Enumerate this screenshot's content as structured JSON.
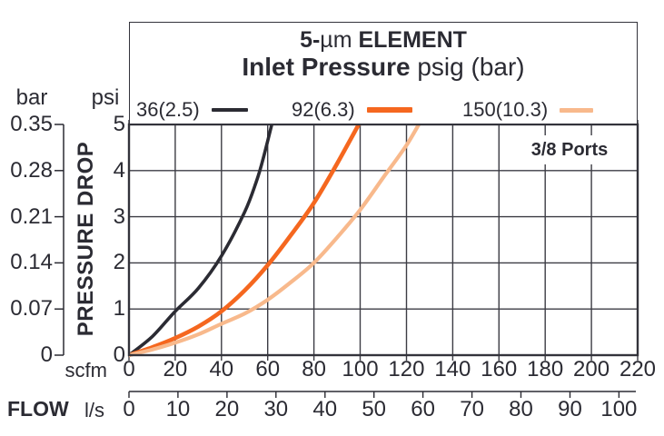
{
  "header": {
    "title_bold_pre": "5-",
    "title_mu": "µm",
    "title_bold_post": " ELEMENT",
    "subtitle_bold": "Inlet Pressure",
    "subtitle_rest": " psig (bar)"
  },
  "chart_data": {
    "type": "line",
    "title": "5-µm ELEMENT",
    "subtitle": "Inlet Pressure psig (bar)",
    "annotation": "3/8 Ports",
    "grid": true,
    "legend_position": "top",
    "x_axis": {
      "label": "FLOW",
      "scfm": {
        "name": "scfm",
        "ticks": [
          0,
          20,
          40,
          60,
          80,
          100,
          120,
          140,
          160,
          180,
          200,
          220
        ],
        "range": [
          0,
          220
        ]
      },
      "ls": {
        "name": "l/s",
        "ticks": [
          0,
          10,
          20,
          30,
          40,
          50,
          60,
          70,
          80,
          90,
          100
        ],
        "range": [
          0,
          100
        ]
      }
    },
    "y_axis": {
      "label": "PRESSURE DROP",
      "psi": {
        "name": "psi",
        "ticks": [
          "5",
          "4",
          "3",
          "2",
          "1",
          "0"
        ],
        "range": [
          0,
          5
        ]
      },
      "bar": {
        "name": "bar",
        "ticks": [
          "0.35",
          "0.28",
          "0.21",
          "0.14",
          "0.07",
          "0"
        ],
        "range": [
          0,
          0.35
        ]
      }
    },
    "series": [
      {
        "name": "36(2.5)",
        "inlet_psig": 36,
        "inlet_bar": 2.5,
        "color": "#2b2b33",
        "points_scfm_psi": [
          [
            0,
            0
          ],
          [
            10,
            0.4
          ],
          [
            20,
            0.95
          ],
          [
            30,
            1.45
          ],
          [
            40,
            2.15
          ],
          [
            50,
            3.1
          ],
          [
            55,
            3.75
          ],
          [
            58,
            4.25
          ],
          [
            62.5,
            5.15
          ]
        ]
      },
      {
        "name": "92(6.3)",
        "inlet_psig": 92,
        "inlet_bar": 6.3,
        "color": "#f5671f",
        "points_scfm_psi": [
          [
            0,
            0
          ],
          [
            10,
            0.17
          ],
          [
            20,
            0.37
          ],
          [
            30,
            0.62
          ],
          [
            40,
            0.95
          ],
          [
            50,
            1.4
          ],
          [
            60,
            1.95
          ],
          [
            70,
            2.6
          ],
          [
            80,
            3.3
          ],
          [
            90,
            4.15
          ],
          [
            101,
            5.15
          ]
        ]
      },
      {
        "name": "150(10.3)",
        "inlet_psig": 150,
        "inlet_bar": 10.3,
        "color": "#f8b98c",
        "points_scfm_psi": [
          [
            0,
            0
          ],
          [
            10,
            0.12
          ],
          [
            20,
            0.27
          ],
          [
            30,
            0.45
          ],
          [
            40,
            0.68
          ],
          [
            50,
            0.9
          ],
          [
            60,
            1.2
          ],
          [
            70,
            1.58
          ],
          [
            80,
            2.0
          ],
          [
            90,
            2.55
          ],
          [
            100,
            3.15
          ],
          [
            110,
            3.85
          ],
          [
            120,
            4.55
          ],
          [
            127,
            5.15
          ]
        ]
      }
    ],
    "colors": {
      "ink": "#2b2b33",
      "grid": "#3c3c44",
      "background": "#ffffff"
    }
  }
}
